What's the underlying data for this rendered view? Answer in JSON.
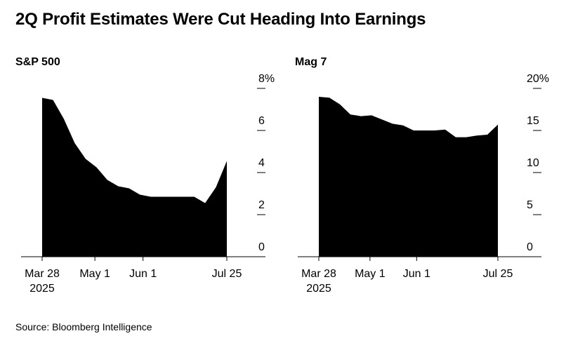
{
  "title": "2Q Profit Estimates Were Cut Heading Into Earnings",
  "source": "Source: Bloomberg Intelligence",
  "chart_data": [
    {
      "type": "area",
      "title": "S&P 500",
      "unit": "%",
      "x_ticks": [
        {
          "t": 0,
          "label": "Mar 28",
          "label2": "2025"
        },
        {
          "t": 34,
          "label": "May 1",
          "label2": ""
        },
        {
          "t": 65,
          "label": "Jun 1",
          "label2": ""
        },
        {
          "t": 119,
          "label": "Jul 25",
          "label2": ""
        }
      ],
      "y_ticks": [
        {
          "v": 8,
          "label": "8%"
        },
        {
          "v": 6,
          "label": "6"
        },
        {
          "v": 4,
          "label": "4"
        },
        {
          "v": 2,
          "label": "2"
        },
        {
          "v": 0,
          "label": "0"
        }
      ],
      "xlim": [
        0,
        119
      ],
      "ylim": [
        0,
        8
      ],
      "points": [
        [
          0,
          7.55
        ],
        [
          7,
          7.45
        ],
        [
          14,
          6.55
        ],
        [
          21,
          5.4
        ],
        [
          28,
          4.65
        ],
        [
          35,
          4.25
        ],
        [
          42,
          3.65
        ],
        [
          49,
          3.35
        ],
        [
          56,
          3.25
        ],
        [
          63,
          2.95
        ],
        [
          70,
          2.85
        ],
        [
          77,
          2.85
        ],
        [
          84,
          2.85
        ],
        [
          91,
          2.85
        ],
        [
          98,
          2.85
        ],
        [
          105,
          2.55
        ],
        [
          112,
          3.3
        ],
        [
          119,
          4.55
        ]
      ]
    },
    {
      "type": "area",
      "title": "Mag 7",
      "unit": "%",
      "x_ticks": [
        {
          "t": 0,
          "label": "Mar 28",
          "label2": "2025"
        },
        {
          "t": 34,
          "label": "May 1",
          "label2": ""
        },
        {
          "t": 65,
          "label": "Jun 1",
          "label2": ""
        },
        {
          "t": 119,
          "label": "Jul 25",
          "label2": ""
        }
      ],
      "y_ticks": [
        {
          "v": 20,
          "label": "20%"
        },
        {
          "v": 15,
          "label": "15"
        },
        {
          "v": 10,
          "label": "10"
        },
        {
          "v": 5,
          "label": "5"
        },
        {
          "v": 0,
          "label": "0"
        }
      ],
      "xlim": [
        0,
        119
      ],
      "ylim": [
        0,
        20
      ],
      "points": [
        [
          0,
          19.0
        ],
        [
          7,
          18.9
        ],
        [
          14,
          18.1
        ],
        [
          21,
          16.9
        ],
        [
          28,
          16.7
        ],
        [
          35,
          16.8
        ],
        [
          42,
          16.3
        ],
        [
          49,
          15.8
        ],
        [
          56,
          15.6
        ],
        [
          63,
          15.0
        ],
        [
          70,
          15.0
        ],
        [
          77,
          15.0
        ],
        [
          84,
          15.1
        ],
        [
          91,
          14.2
        ],
        [
          98,
          14.2
        ],
        [
          105,
          14.4
        ],
        [
          112,
          14.5
        ],
        [
          119,
          15.7
        ]
      ]
    }
  ]
}
